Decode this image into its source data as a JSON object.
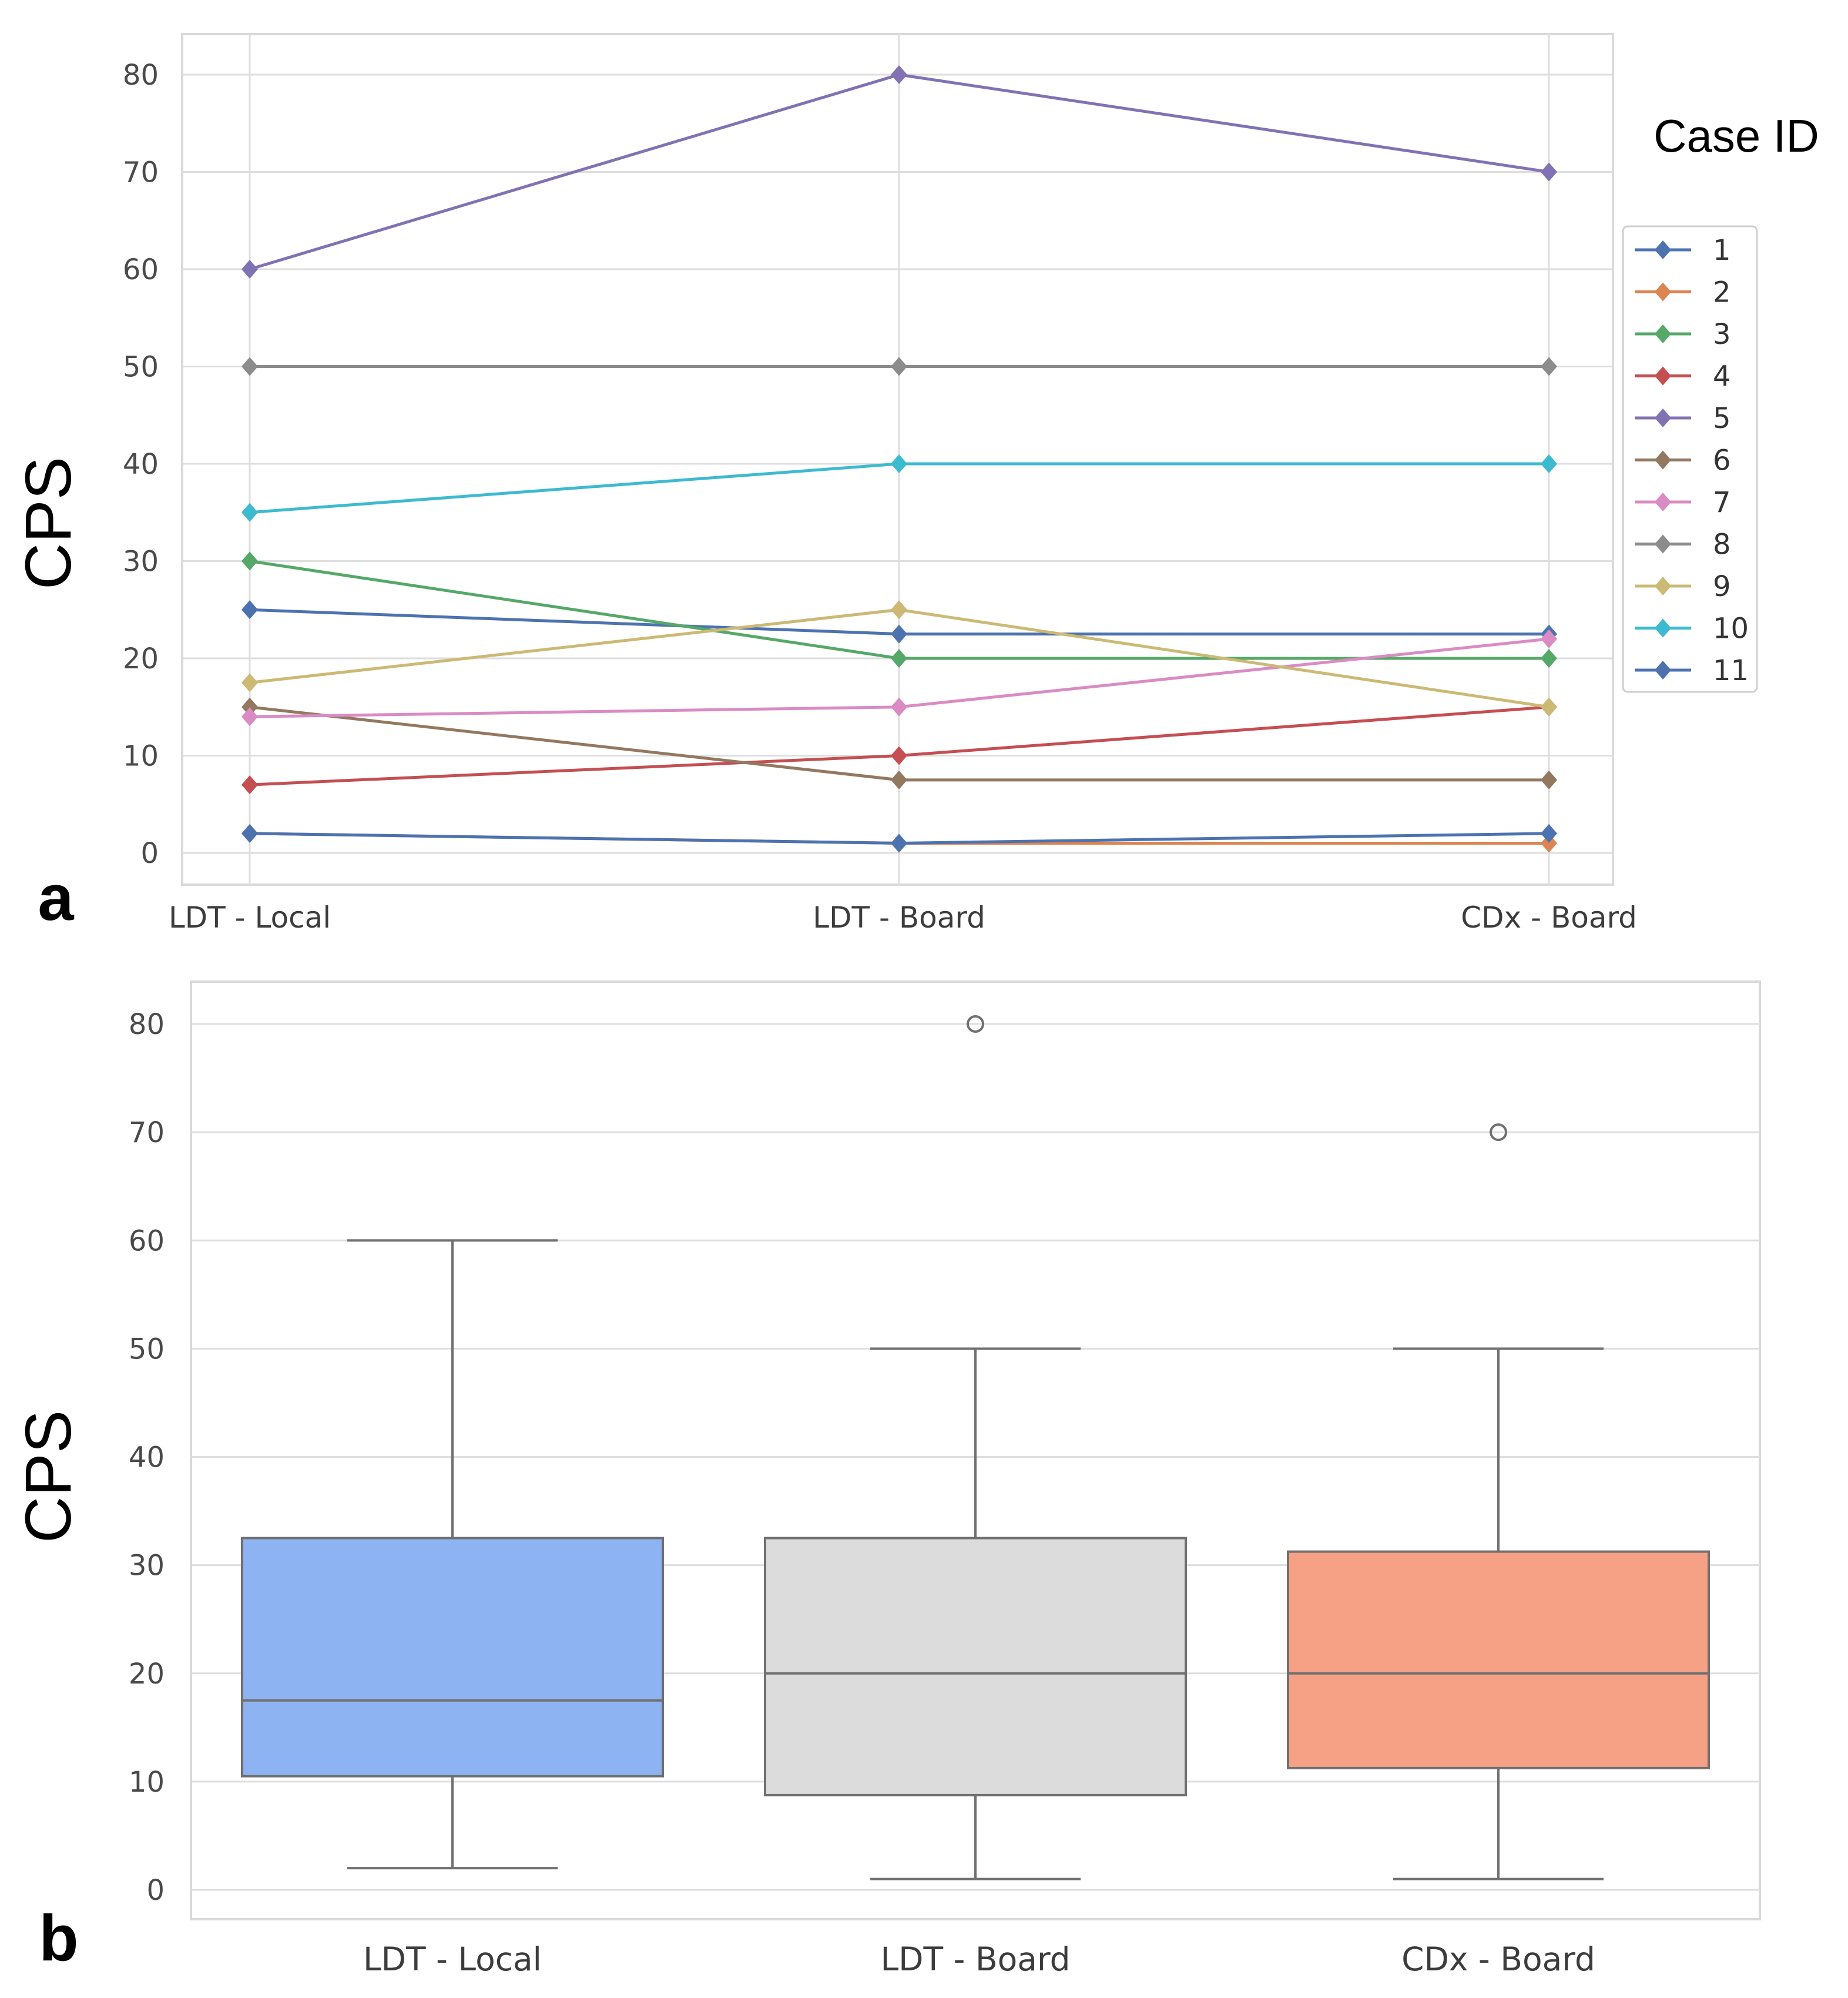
{
  "chart_data": [
    {
      "type": "line",
      "panel_label": "a",
      "categories": [
        "LDT - Local",
        "LDT - Board",
        "CDx - Board"
      ],
      "ylabel": "CPS",
      "xlabel": "",
      "ylim": [
        -3,
        84
      ],
      "yticks": [
        0,
        10,
        20,
        30,
        40,
        50,
        60,
        70,
        80
      ],
      "grid": true,
      "marker": "diamond",
      "legend": {
        "title": "Case ID",
        "placement": "right"
      },
      "series": [
        {
          "name": "1",
          "color": "#4c72b0",
          "values": [
            25,
            22.5,
            22.5
          ]
        },
        {
          "name": "2",
          "color": "#dd8452",
          "values": [
            2,
            1,
            1
          ]
        },
        {
          "name": "3",
          "color": "#55a868",
          "values": [
            30,
            20,
            20
          ]
        },
        {
          "name": "4",
          "color": "#c44e52",
          "values": [
            7,
            10,
            15
          ]
        },
        {
          "name": "5",
          "color": "#8172b3",
          "values": [
            60,
            80,
            70
          ]
        },
        {
          "name": "6",
          "color": "#937860",
          "values": [
            15,
            7.5,
            7.5
          ]
        },
        {
          "name": "7",
          "color": "#da8bc3",
          "values": [
            14,
            15,
            22
          ]
        },
        {
          "name": "8",
          "color": "#8c8c8c",
          "values": [
            50,
            50,
            50
          ]
        },
        {
          "name": "9",
          "color": "#ccb974",
          "values": [
            17.5,
            25,
            15
          ]
        },
        {
          "name": "10",
          "color": "#3cbad0",
          "values": [
            35,
            40,
            40
          ]
        },
        {
          "name": "11",
          "color": "#4c72b0",
          "values": [
            2,
            1,
            2
          ]
        }
      ]
    },
    {
      "type": "box",
      "panel_label": "b",
      "categories": [
        "LDT - Local",
        "LDT - Board",
        "CDx - Board"
      ],
      "ylabel": "CPS",
      "xlabel": "",
      "ylim": [
        -3,
        84
      ],
      "yticks": [
        0,
        10,
        20,
        30,
        40,
        50,
        60,
        70,
        80
      ],
      "grid": true,
      "boxes": [
        {
          "category": "LDT - Local",
          "color": "#8db3f2",
          "whisker_low": 2,
          "q1": 10.5,
          "median": 17.5,
          "q3": 32.5,
          "whisker_high": 60,
          "outliers": []
        },
        {
          "category": "LDT - Board",
          "color": "#dcdcdc",
          "whisker_low": 1,
          "q1": 8.75,
          "median": 20,
          "q3": 32.5,
          "whisker_high": 50,
          "outliers": [
            80
          ]
        },
        {
          "category": "CDx - Board",
          "color": "#f6a186",
          "whisker_low": 1,
          "q1": 11.25,
          "median": 20,
          "q3": 31.25,
          "whisker_high": 50,
          "outliers": [
            70
          ]
        }
      ]
    }
  ]
}
